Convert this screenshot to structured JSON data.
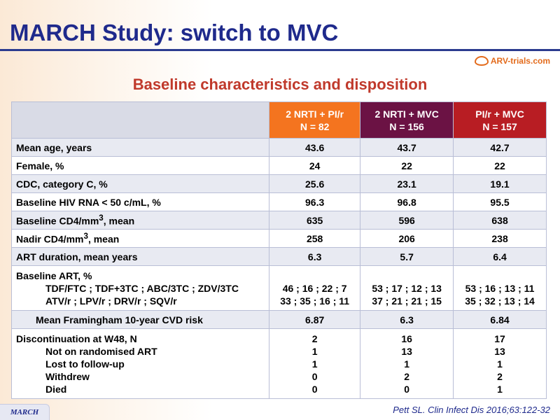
{
  "slide": {
    "title": "MARCH Study: switch to MVC",
    "subtitle": "Baseline characteristics and disposition",
    "logo_text": "ARV-trials.com",
    "reference": "Pett SL. Clin Infect Dis 2016;63:122-32",
    "footer_tag": "MARCH"
  },
  "colors": {
    "title": "#1f2a8c",
    "subtitle": "#c0392b",
    "arm1": "#f4741f",
    "arm2": "#6b1244",
    "arm3": "#b81d23"
  },
  "table": {
    "headers": [
      {
        "line1": "",
        "line2": ""
      },
      {
        "line1": "2 NRTI + PI/r",
        "line2": "N = 82"
      },
      {
        "line1": "2 NRTI + MVC",
        "line2": "N = 156"
      },
      {
        "line1": "PI/r + MVC",
        "line2": "N = 157"
      }
    ],
    "rows": [
      {
        "label": "Mean age, years",
        "values": [
          "43.6",
          "43.7",
          "42.7"
        ]
      },
      {
        "label": "Female, %",
        "values": [
          "24",
          "22",
          "22"
        ]
      },
      {
        "label": "CDC, category C, %",
        "values": [
          "25.6",
          "23.1",
          "19.1"
        ]
      },
      {
        "label": "Baseline HIV RNA < 50 c/mL, %",
        "values": [
          "96.3",
          "96.8",
          "95.5"
        ]
      },
      {
        "label_pre": "Baseline CD4/mm",
        "label_sup": "3",
        "label_post": ", mean",
        "values": [
          "635",
          "596",
          "638"
        ]
      },
      {
        "label_pre": "Nadir CD4/mm",
        "label_sup": "3",
        "label_post": ", mean",
        "values": [
          "258",
          "206",
          "238"
        ]
      },
      {
        "label": "ART duration, mean years",
        "values": [
          "6.3",
          "5.7",
          "6.4"
        ]
      }
    ],
    "baseline_art": {
      "label": "Baseline ART, %",
      "sub1": "TDF/FTC ; TDF+3TC ; ABC/3TC ; ZDV/3TC",
      "sub2": "ATV/r ; LPV/r ; DRV/r ; SQV/r",
      "values1": [
        "46 ; 16 ; 22 ; 7",
        "53 ; 17 ; 12 ; 13",
        "53 ; 16 ; 13 ; 11"
      ],
      "values2": [
        "33 ; 35 ; 16 ; 11",
        "37 ; 21 ; 21 ; 15",
        "35 ; 32 ; 13 ; 14"
      ]
    },
    "framingham": {
      "label": "Mean Framingham 10-year CVD risk",
      "values": [
        "6.87",
        "6.3",
        "6.84"
      ]
    },
    "discontinuation": {
      "label": "Discontinuation at W48, N",
      "sub": [
        "Not on randomised ART",
        "Lost to follow-up",
        "Withdrew",
        "Died"
      ],
      "arm1": [
        "2",
        "1",
        "1",
        "0",
        "0"
      ],
      "arm2": [
        "16",
        "13",
        "1",
        "2",
        "0"
      ],
      "arm3": [
        "17",
        "13",
        "1",
        "2",
        "1"
      ]
    }
  }
}
